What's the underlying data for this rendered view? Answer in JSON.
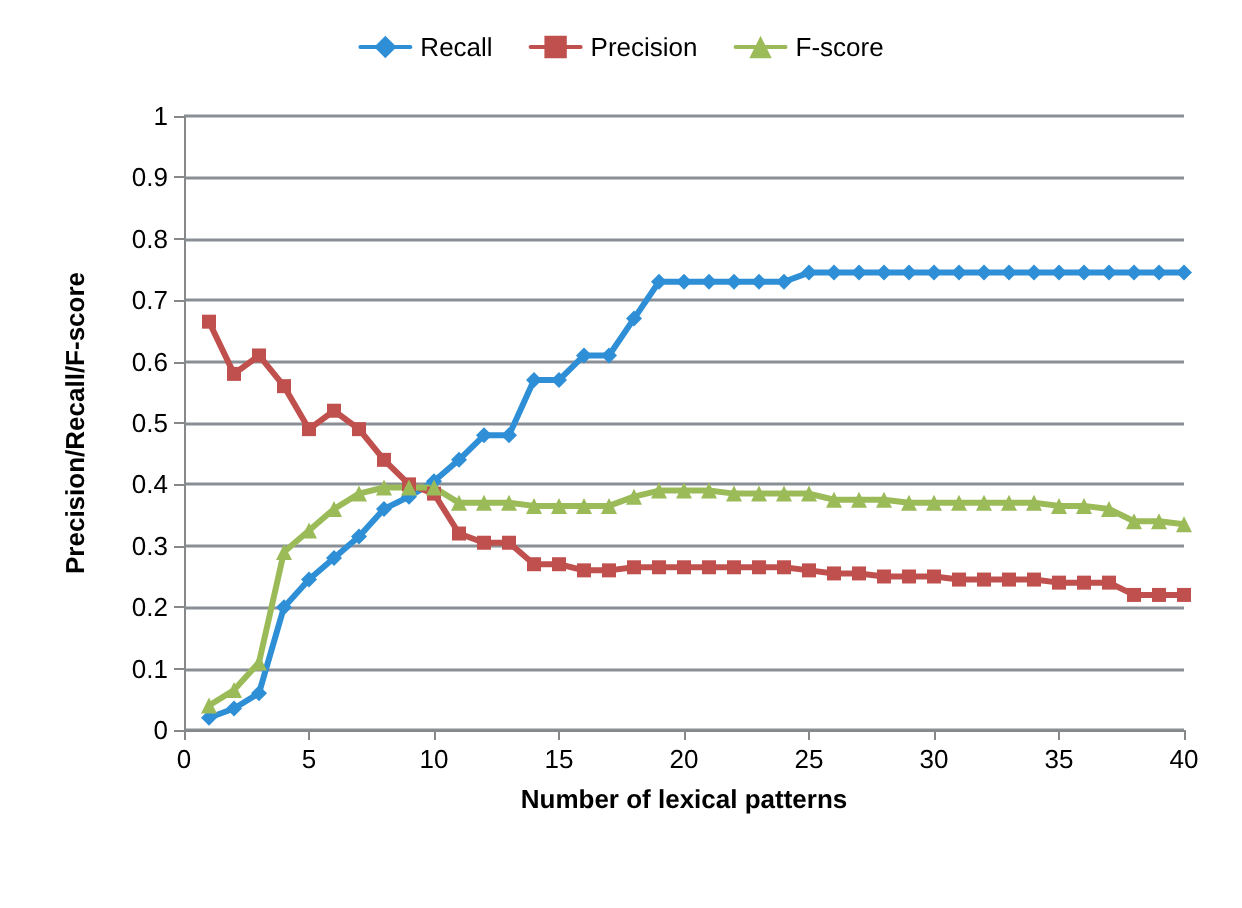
{
  "chart_data": {
    "type": "line",
    "xlabel": "Number of lexical patterns",
    "ylabel": "Precision/Recall/F-score",
    "x": [
      1,
      2,
      3,
      4,
      5,
      6,
      7,
      8,
      9,
      10,
      11,
      12,
      13,
      14,
      15,
      16,
      17,
      18,
      19,
      20,
      21,
      22,
      23,
      24,
      25,
      26,
      27,
      28,
      29,
      30,
      31,
      32,
      33,
      34,
      35,
      36,
      37,
      38,
      39,
      40
    ],
    "series": [
      {
        "name": "Recall",
        "color": "#2e8fd6",
        "marker": "diamond",
        "values": [
          0.02,
          0.035,
          0.06,
          0.2,
          0.245,
          0.28,
          0.315,
          0.36,
          0.38,
          0.405,
          0.44,
          0.48,
          0.48,
          0.57,
          0.57,
          0.61,
          0.61,
          0.67,
          0.73,
          0.73,
          0.73,
          0.73,
          0.73,
          0.73,
          0.745,
          0.745,
          0.745,
          0.745,
          0.745,
          0.745,
          0.745,
          0.745,
          0.745,
          0.745,
          0.745,
          0.745,
          0.745,
          0.745,
          0.745,
          0.745
        ]
      },
      {
        "name": "Precision",
        "color": "#c0504d",
        "marker": "square",
        "values": [
          0.665,
          0.58,
          0.61,
          0.56,
          0.49,
          0.52,
          0.49,
          0.44,
          0.4,
          0.385,
          0.32,
          0.305,
          0.305,
          0.27,
          0.27,
          0.26,
          0.26,
          0.265,
          0.265,
          0.265,
          0.265,
          0.265,
          0.265,
          0.265,
          0.26,
          0.255,
          0.255,
          0.25,
          0.25,
          0.25,
          0.245,
          0.245,
          0.245,
          0.245,
          0.24,
          0.24,
          0.24,
          0.22,
          0.22,
          0.22
        ]
      },
      {
        "name": "F-score",
        "color": "#9bbb59",
        "marker": "triangle",
        "values": [
          0.04,
          0.065,
          0.11,
          0.29,
          0.325,
          0.36,
          0.385,
          0.395,
          0.395,
          0.395,
          0.37,
          0.37,
          0.37,
          0.365,
          0.365,
          0.365,
          0.365,
          0.38,
          0.39,
          0.39,
          0.39,
          0.385,
          0.385,
          0.385,
          0.385,
          0.375,
          0.375,
          0.375,
          0.37,
          0.37,
          0.37,
          0.37,
          0.37,
          0.37,
          0.365,
          0.365,
          0.36,
          0.34,
          0.34,
          0.335
        ]
      }
    ],
    "xlim": [
      0,
      40
    ],
    "xticks": [
      0,
      5,
      10,
      15,
      20,
      25,
      30,
      35,
      40
    ],
    "ylim": [
      0,
      1
    ],
    "yticks": [
      0,
      0.1,
      0.2,
      0.3,
      0.4,
      0.5,
      0.6,
      0.7,
      0.8,
      0.9,
      1
    ],
    "grid": "y",
    "legend": "top",
    "line_style": "solid"
  }
}
